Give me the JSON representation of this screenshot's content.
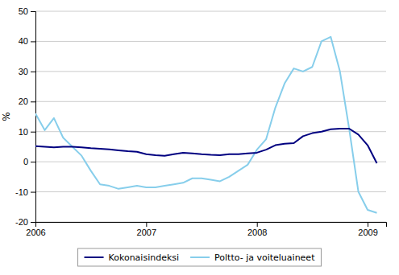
{
  "chart_data": {
    "type": "line",
    "ylabel": "%",
    "x": [
      2006,
      2006.0833333333333,
      2006.1666666666667,
      2006.25,
      2006.3333333333333,
      2006.4166666666667,
      2006.5,
      2006.5833333333333,
      2006.6666666666667,
      2006.75,
      2006.8333333333333,
      2006.9166666666667,
      2007,
      2007.0833333333333,
      2007.1666666666667,
      2007.25,
      2007.3333333333333,
      2007.4166666666667,
      2007.5,
      2007.5833333333333,
      2007.6666666666667,
      2007.75,
      2007.8333333333333,
      2007.9166666666667,
      2008,
      2008.0833333333333,
      2008.1666666666667,
      2008.25,
      2008.3333333333333,
      2008.4166666666667,
      2008.5,
      2008.5833333333333,
      2008.6666666666667,
      2008.75,
      2008.8333333333333,
      2008.9166666666667,
      2009,
      2009.0833333333333
    ],
    "xlim": [
      2006.0,
      2009.167
    ],
    "xticks": [
      2006,
      2007,
      2008,
      2009
    ],
    "ylim": [
      -20,
      50
    ],
    "yticks": [
      -20,
      -10,
      0,
      10,
      20,
      30,
      40,
      50
    ],
    "grid": true,
    "legend": "bottom",
    "series": [
      {
        "name": "Kokonaisindeksi",
        "color": "#000080",
        "values": [
          5.2,
          5.0,
          4.8,
          5.0,
          5.0,
          4.8,
          4.5,
          4.3,
          4.1,
          3.8,
          3.5,
          3.3,
          2.5,
          2.2,
          2.0,
          2.5,
          3.0,
          2.8,
          2.5,
          2.3,
          2.2,
          2.5,
          2.5,
          2.8,
          3.0,
          4.0,
          5.5,
          6.0,
          6.2,
          8.5,
          9.5,
          10.0,
          10.8,
          11.0,
          11.0,
          9.0,
          5.5,
          -0.5
        ]
      },
      {
        "name": "Poltto- ja voiteluaineet",
        "color": "#87CEEB",
        "values": [
          16.0,
          10.5,
          14.5,
          8.0,
          5.0,
          2.0,
          -3.0,
          -7.5,
          -8.0,
          -9.0,
          -8.5,
          -8.0,
          -8.5,
          -8.5,
          -8.0,
          -7.5,
          -7.0,
          -5.5,
          -5.5,
          -6.0,
          -6.5,
          -5.0,
          -3.0,
          -1.0,
          4.0,
          7.5,
          18.0,
          26.0,
          31.0,
          30.0,
          31.5,
          40.0,
          41.5,
          30.0,
          11.0,
          -10.0,
          -16.0,
          -17.0
        ]
      }
    ]
  }
}
